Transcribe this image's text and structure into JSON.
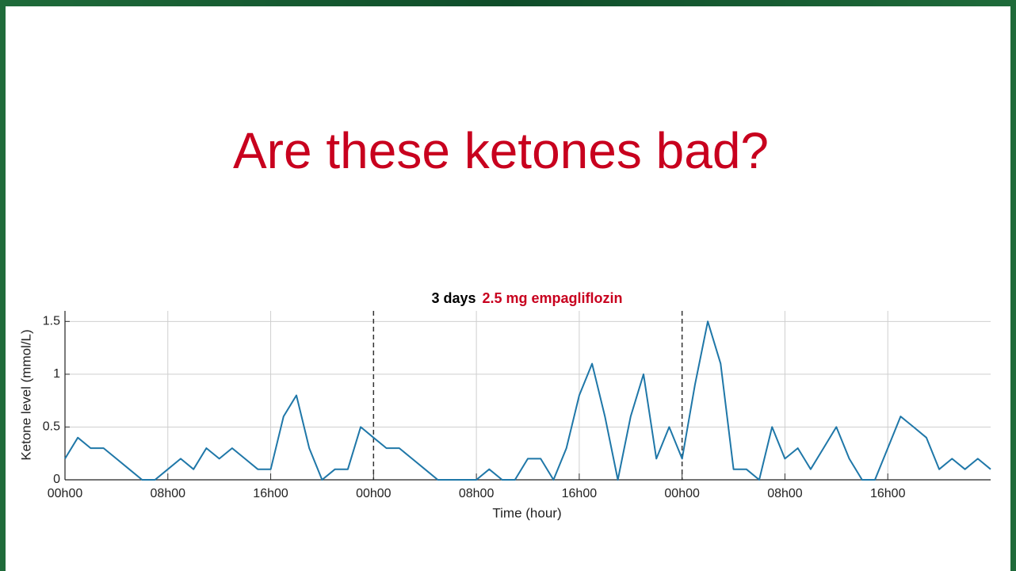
{
  "slide": {
    "title": "Are these ketones bad?"
  },
  "chart_data": {
    "type": "line",
    "title": "3 days",
    "title_highlight": "2.5 mg empagliflozin",
    "x_label": "Time (hour)",
    "y_label": "Ketone level (mmol/L)",
    "color": "#1f77a8",
    "title_highlight_color": "#c8001e",
    "grid": true,
    "day_boundaries": [
      24,
      48
    ],
    "xlim": [
      0,
      72
    ],
    "ylim": [
      0,
      1.6
    ],
    "xticks": [
      {
        "value": 0,
        "label": "00h00"
      },
      {
        "value": 8,
        "label": "08h00"
      },
      {
        "value": 16,
        "label": "16h00"
      },
      {
        "value": 24,
        "label": "00h00"
      },
      {
        "value": 32,
        "label": "08h00"
      },
      {
        "value": 40,
        "label": "16h00"
      },
      {
        "value": 48,
        "label": "00h00"
      },
      {
        "value": 56,
        "label": "08h00"
      },
      {
        "value": 64,
        "label": "16h00"
      }
    ],
    "yticks": [
      0,
      0.5,
      1,
      1.5
    ],
    "x": [
      0,
      1,
      2,
      3,
      4,
      5,
      6,
      7,
      8,
      9,
      10,
      11,
      12,
      13,
      14,
      15,
      16,
      17,
      18,
      19,
      20,
      21,
      22,
      23,
      24,
      25,
      26,
      27,
      28,
      29,
      30,
      31,
      32,
      33,
      34,
      35,
      36,
      37,
      38,
      39,
      40,
      41,
      42,
      43,
      44,
      45,
      46,
      47,
      48,
      49,
      50,
      51,
      52,
      53,
      54,
      55,
      56,
      57,
      58,
      59,
      60,
      61,
      62,
      63,
      64,
      65,
      66,
      67,
      68,
      69,
      70,
      71,
      72
    ],
    "values": [
      0.2,
      0.4,
      0.3,
      0.3,
      0.2,
      0.1,
      0,
      0,
      0.1,
      0.2,
      0.1,
      0.3,
      0.2,
      0.3,
      0.2,
      0.1,
      0.1,
      0.6,
      0.8,
      0.3,
      0,
      0.1,
      0.1,
      0.5,
      0.4,
      0.3,
      0.3,
      0.2,
      0.1,
      0,
      0,
      0,
      0,
      0.1,
      0,
      0,
      0.2,
      0.2,
      0,
      0.3,
      0.8,
      1.1,
      0.6,
      0,
      0.6,
      1.0,
      0.2,
      0.5,
      0.2,
      0.9,
      1.5,
      1.1,
      0.1,
      0.1,
      0,
      0.5,
      0.2,
      0.3,
      0.1,
      0.3,
      0.5,
      0.2,
      0,
      0,
      0.3,
      0.6,
      0.5,
      0.4,
      0.1,
      0.2,
      0.1,
      0.2,
      0.1
    ]
  }
}
